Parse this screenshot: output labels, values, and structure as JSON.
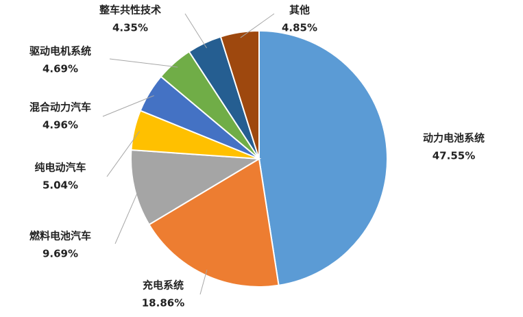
{
  "chart_data": {
    "type": "pie",
    "categories": [
      "动力电池系统",
      "充电系统",
      "燃料电池汽车",
      "纯电动汽车",
      "混合动力汽车",
      "驱动电机系统",
      "整车共性技术",
      "其他"
    ],
    "values": [
      47.55,
      18.86,
      9.69,
      5.04,
      4.96,
      4.69,
      4.35,
      4.85
    ],
    "value_labels": [
      "47.55%",
      "18.86%",
      "9.69%",
      "5.04%",
      "4.96%",
      "4.69%",
      "4.35%",
      "4.85%"
    ],
    "colors": [
      "#5b9bd5",
      "#ed7d31",
      "#a5a5a5",
      "#ffc000",
      "#4472c4",
      "#70ad47",
      "#255e91",
      "#9e480e"
    ]
  }
}
